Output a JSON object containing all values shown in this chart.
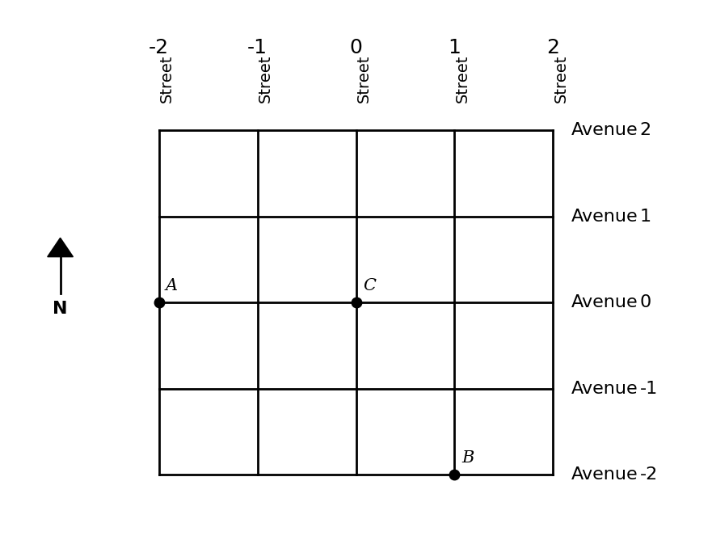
{
  "streets": [
    -2,
    -1,
    0,
    1,
    2
  ],
  "avenues": [
    2,
    1,
    0,
    -1,
    -2
  ],
  "street_labels": [
    "Street",
    "Street",
    "Street",
    "Street",
    "Street"
  ],
  "street_numbers": [
    "-2",
    "-1",
    "0",
    "1",
    "2"
  ],
  "avenue_word": "Avenue",
  "avenue_numbers": [
    "2",
    "1",
    "0",
    "-1",
    "-2"
  ],
  "avenue_y_values": [
    2,
    1,
    0,
    -1,
    -2
  ],
  "points": [
    {
      "label": "A",
      "street": -2,
      "avenue": 0
    },
    {
      "label": "C",
      "street": 0,
      "avenue": 0
    },
    {
      "label": "B",
      "street": 1,
      "avenue": -2
    }
  ],
  "grid_color": "#000000",
  "point_color": "#000000",
  "point_size": 9,
  "background_color": "#ffffff",
  "label_fontsize": 15,
  "street_num_fontsize": 18,
  "street_word_fontsize": 14,
  "avenue_fontsize": 16
}
